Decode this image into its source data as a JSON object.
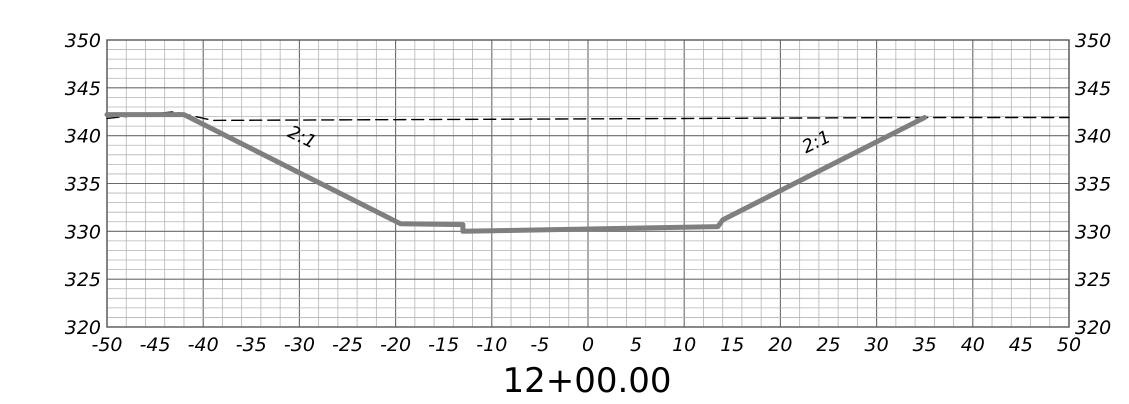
{
  "chart_data": {
    "type": "line",
    "title": "",
    "station_label": "12+00.00",
    "xlabel": "",
    "ylabel": "",
    "xlim": [
      -50,
      50
    ],
    "ylim": [
      320,
      350
    ],
    "x_ticks": [
      "-50",
      "-45",
      "-40",
      "-35",
      "-30",
      "-25",
      "-20",
      "-15",
      "-10",
      "-5",
      "0",
      "5",
      "10",
      "15",
      "20",
      "25",
      "30",
      "35",
      "40",
      "45",
      "50"
    ],
    "y_ticks_left": [
      "350",
      "345",
      "340",
      "335",
      "330",
      "325",
      "320"
    ],
    "y_ticks_right": [
      "350",
      "345",
      "340",
      "335",
      "330",
      "325",
      "320"
    ],
    "grid": true,
    "grid_x_minor_step": 2,
    "grid_y_minor_step": 1,
    "annotations": [
      {
        "text": "2:1",
        "x": -30,
        "y": 339.3,
        "angle": 26
      },
      {
        "text": "2:1",
        "x": 24,
        "y": 338.8,
        "angle": -26
      }
    ],
    "series": [
      {
        "style": "dashed",
        "color": "#000000",
        "x": [
          -50,
          -43,
          -39,
          35,
          50
        ],
        "y": [
          341.8,
          342.5,
          341.6,
          341.9,
          341.9
        ]
      },
      {
        "style": "solid-thick",
        "color": "#7f7f7f",
        "x": [
          -50,
          -42,
          -19.5,
          -13,
          -13,
          13.5,
          14,
          35
        ],
        "y": [
          342.2,
          342.2,
          330.8,
          330.7,
          330.0,
          330.5,
          331.2,
          341.9
        ]
      }
    ]
  }
}
